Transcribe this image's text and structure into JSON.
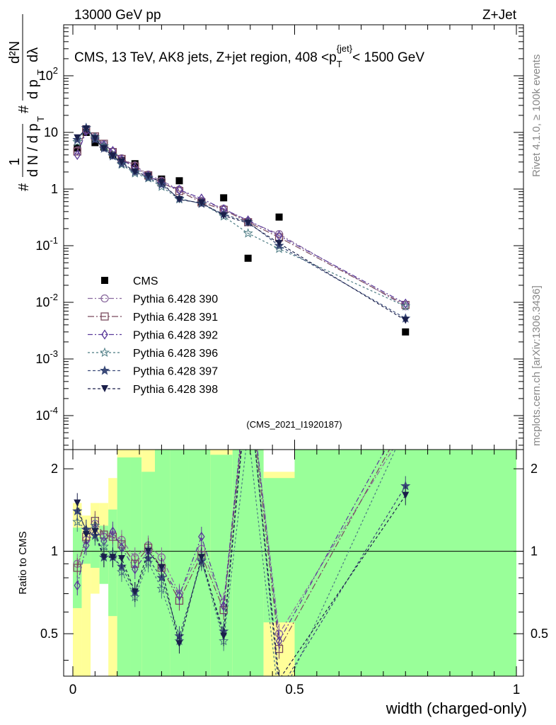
{
  "header": {
    "left": "13000 GeV pp",
    "right": "Z+Jet"
  },
  "side_labels": {
    "rivet": "Rivet 4.1.0, ≥ 100k events",
    "mcplots": "mcplots.cern.ch [arXiv:1306.3436]"
  },
  "chart_data": [
    {
      "type": "scatter",
      "panel": "main",
      "title": "CMS, 13 TeV, AK8 jets, Z+jet region, 408 <p_T^{jet}< 1500 GeV",
      "title_parts": {
        "prefix": "CMS, 13 TeV, AK8 jets, Z+jet region, 408 <p",
        "sub": "T",
        "sup": "{jet}",
        "suffix": "< 1500 GeV"
      },
      "ylabel_parts": {
        "hash": "#",
        "one": "1",
        "dN": "d N / d p",
        "t": "T",
        "d2N": "d²N",
        "dpT": "d p",
        "dlambda": "dλ"
      },
      "annotation": "(CMS_2021_I1920187)",
      "xlabel": "width (charged-only)",
      "xlim": [
        -0.02,
        1.0
      ],
      "ylim_log10": [
        -4.6,
        2.9
      ],
      "yscale": "log",
      "y_tick_labels": [
        {
          "base": "10",
          "exp": "-4",
          "log": -4
        },
        {
          "base": "10",
          "exp": "-3",
          "log": -3
        },
        {
          "base": "10",
          "exp": "-2",
          "log": -2
        },
        {
          "base": "10",
          "exp": "-1",
          "log": -1
        },
        {
          "label": "1",
          "log": 0
        },
        {
          "label": "10",
          "log": 1
        },
        {
          "base": "10",
          "exp": "2",
          "log": 2
        }
      ],
      "x_ticks": [
        0,
        0.5,
        1
      ],
      "x_tick_labels": [
        "0",
        "0.5",
        "1"
      ],
      "data_x": [
        0.01,
        0.03,
        0.05,
        0.07,
        0.09,
        0.11,
        0.14,
        0.17,
        0.2,
        0.24,
        0.29,
        0.34,
        0.395,
        0.465,
        0.75
      ],
      "series": [
        {
          "name": "CMS",
          "marker": "square",
          "color": "#000000",
          "line": false,
          "values": [
            5.3,
            10.0,
            6.6,
            5.5,
            4.0,
            3.2,
            2.8,
            1.7,
            1.5,
            1.4,
            0.6,
            0.7,
            0.06,
            0.32,
            0.003
          ]
        },
        {
          "name": "Pythia 6.428 390",
          "marker": "circle",
          "color": "#8a6a9e",
          "line": true,
          "dash": "7,3,2,3",
          "values": [
            4.8,
            11.0,
            8.3,
            6.2,
            4.6,
            3.5,
            2.6,
            1.8,
            1.4,
            0.98,
            0.62,
            0.45,
            0.27,
            0.16,
            0.0085
          ]
        },
        {
          "name": "Pythia 6.428 391",
          "marker": "square-open",
          "color": "#7a4a5e",
          "line": true,
          "dash": "9,3,2,3",
          "values": [
            4.6,
            11.3,
            8.5,
            6.3,
            4.5,
            3.4,
            2.5,
            1.75,
            1.3,
            0.92,
            0.58,
            0.43,
            0.26,
            0.14,
            0.009
          ]
        },
        {
          "name": "Pythia 6.428 392",
          "marker": "diamond-open",
          "color": "#5a3a9a",
          "line": true,
          "dash": "7,3,2,3",
          "values": [
            4.0,
            10.5,
            8.0,
            6.0,
            4.7,
            3.3,
            2.4,
            1.7,
            1.3,
            0.97,
            0.68,
            0.44,
            0.28,
            0.15,
            0.0095
          ]
        },
        {
          "name": "Pythia 6.428 396",
          "marker": "star-open",
          "color": "#4a7a82",
          "line": true,
          "dash": "3,3",
          "values": [
            6.8,
            12.0,
            8.2,
            5.7,
            3.9,
            2.7,
            1.9,
            1.55,
            1.1,
            0.66,
            0.56,
            0.33,
            0.165,
            0.088,
            0.0085
          ]
        },
        {
          "name": "Pythia 6.428 397",
          "marker": "star",
          "color": "#3a4a78",
          "line": true,
          "dash": "4,3",
          "values": [
            7.4,
            12.0,
            7.5,
            5.2,
            3.8,
            2.8,
            2.0,
            1.6,
            1.2,
            0.68,
            0.55,
            0.36,
            0.26,
            0.1,
            0.0052
          ]
        },
        {
          "name": "Pythia 6.428 398",
          "marker": "triangle-down",
          "color": "#1a1f4a",
          "line": true,
          "dash": "4,3",
          "values": [
            8.0,
            11.5,
            7.8,
            5.2,
            3.8,
            3.0,
            2.0,
            1.7,
            1.3,
            0.65,
            0.57,
            0.34,
            0.25,
            0.11,
            0.0048
          ]
        }
      ]
    },
    {
      "type": "scatter",
      "panel": "ratio",
      "ylabel": "Ratio to CMS",
      "ylim": [
        0.35,
        2.35
      ],
      "y_ticks": [
        0.5,
        1,
        2
      ],
      "y_tick_labels": [
        "0.5",
        "1",
        "2"
      ],
      "reference_line": 1,
      "uncertainty_bands": [
        {
          "x0": 0.0,
          "x1": 0.02,
          "yellow": [
            0.35,
            1.5
          ],
          "green": [
            0.62,
            1.22
          ]
        },
        {
          "x0": 0.02,
          "x1": 0.04,
          "yellow": [
            0.35,
            1.35
          ],
          "green": [
            0.9,
            1.1
          ]
        },
        {
          "x0": 0.04,
          "x1": 0.06,
          "yellow": [
            0.7,
            1.5
          ],
          "green": [
            0.87,
            1.13
          ]
        },
        {
          "x0": 0.06,
          "x1": 0.08,
          "yellow": [
            0.9,
            1.5
          ],
          "green": [
            0.76,
            1.24
          ]
        },
        {
          "x0": 0.08,
          "x1": 0.1,
          "yellow": [
            0.35,
            1.85
          ],
          "green": [
            0.58,
            1.42
          ]
        },
        {
          "x0": 0.1,
          "x1": 0.13,
          "yellow": [
            0.35,
            2.35
          ],
          "green": [
            0.35,
            2.2
          ]
        },
        {
          "x0": 0.13,
          "x1": 0.155,
          "yellow": [
            0.35,
            2.35
          ],
          "green": [
            0.35,
            2.2
          ]
        },
        {
          "x0": 0.155,
          "x1": 0.185,
          "yellow": [
            0.35,
            2.35
          ],
          "green": [
            0.35,
            1.95
          ]
        },
        {
          "x0": 0.185,
          "x1": 0.22,
          "yellow": [
            0.35,
            2.35
          ],
          "green": [
            0.35,
            2.35
          ]
        },
        {
          "x0": 0.22,
          "x1": 0.26,
          "yellow": [
            0.35,
            2.35
          ],
          "green": [
            0.35,
            2.35
          ]
        },
        {
          "x0": 0.26,
          "x1": 0.31,
          "yellow": [
            0.35,
            2.35
          ],
          "green": [
            0.35,
            2.35
          ]
        },
        {
          "x0": 0.31,
          "x1": 0.36,
          "yellow": [
            0.35,
            2.35
          ],
          "green": [
            0.35,
            2.25
          ]
        },
        {
          "x0": 0.36,
          "x1": 0.43,
          "yellow": [
            0.35,
            2.35
          ],
          "green": [
            0.35,
            2.35
          ]
        },
        {
          "x0": 0.43,
          "x1": 0.5,
          "yellow": [
            0.35,
            1.95
          ],
          "green": [
            0.55,
            1.85
          ]
        },
        {
          "x0": 0.5,
          "x1": 1.0,
          "yellow": [
            0.35,
            2.35
          ],
          "green": [
            0.35,
            2.35
          ]
        }
      ],
      "ratio_series": [
        {
          "name": "Pythia 6.428 390",
          "values": [
            0.9,
            1.1,
            1.26,
            1.13,
            1.15,
            1.1,
            0.95,
            1.05,
            0.95,
            0.7,
            1.02,
            0.65,
            4.5,
            0.5,
            2.8
          ]
        },
        {
          "name": "Pythia 6.428 391",
          "values": [
            0.87,
            1.13,
            1.29,
            1.15,
            1.13,
            1.06,
            0.9,
            1.03,
            0.87,
            0.66,
            0.97,
            0.61,
            4.3,
            0.44,
            3.0
          ]
        },
        {
          "name": "Pythia 6.428 392",
          "values": [
            0.75,
            1.05,
            1.21,
            1.09,
            1.18,
            1.03,
            0.86,
            1.0,
            0.87,
            0.69,
            1.13,
            0.63,
            4.7,
            0.47,
            3.2
          ]
        },
        {
          "name": "Pythia 6.428 396",
          "values": [
            1.28,
            1.2,
            1.24,
            1.04,
            0.98,
            0.84,
            0.68,
            0.91,
            0.73,
            0.47,
            0.93,
            0.47,
            2.75,
            0.28,
            2.83
          ]
        },
        {
          "name": "Pythia 6.428 397",
          "values": [
            1.4,
            1.2,
            1.14,
            0.95,
            0.95,
            0.88,
            0.71,
            0.94,
            0.8,
            0.49,
            0.92,
            0.51,
            4.3,
            0.31,
            1.73
          ]
        },
        {
          "name": "Pythia 6.428 398",
          "values": [
            1.5,
            1.15,
            1.18,
            0.95,
            0.95,
            0.94,
            0.71,
            1.0,
            0.87,
            0.46,
            0.95,
            0.49,
            4.2,
            0.34,
            1.6
          ]
        }
      ]
    }
  ]
}
